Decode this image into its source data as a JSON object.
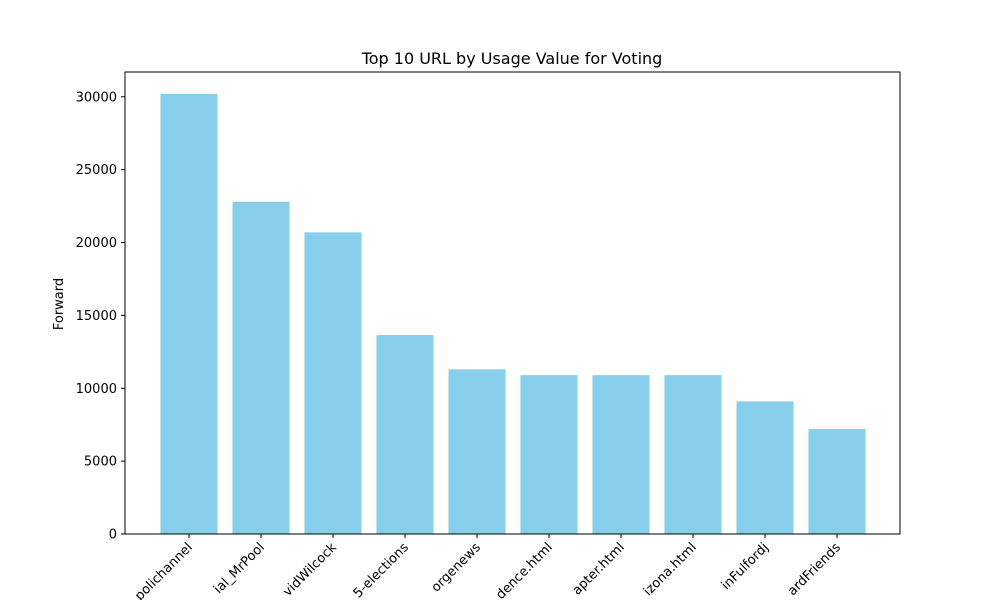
{
  "chart_data": {
    "type": "bar",
    "title": "Top 10 URL by Usage Value for Voting",
    "xlabel": "",
    "ylabel": "Forward",
    "categories": [
      "polichannel",
      "ial_MrPool",
      "vidWilcock",
      "5-elections",
      "orgenews",
      "dence.html",
      "apter.html",
      "izona.html",
      "inFulfordj",
      "ardFriends"
    ],
    "values": [
      30200,
      22800,
      20700,
      13650,
      11300,
      10900,
      10900,
      10900,
      9100,
      7200
    ],
    "ylim": [
      0,
      31700
    ],
    "yticks": [
      0,
      5000,
      10000,
      15000,
      20000,
      25000,
      30000
    ],
    "bar_color": "#87ceeb",
    "grid": false,
    "legend": "none"
  }
}
